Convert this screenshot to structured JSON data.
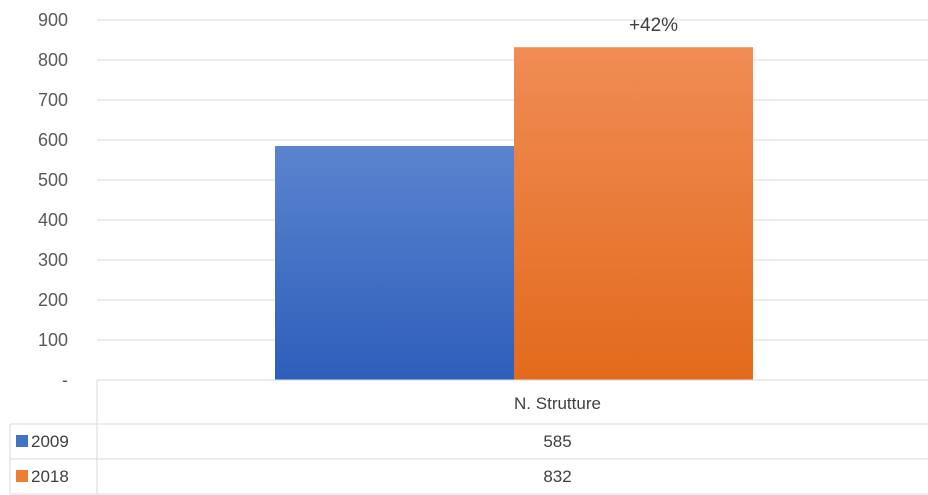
{
  "chart_data": {
    "type": "bar",
    "categories": [
      "N. Strutture"
    ],
    "series": [
      {
        "name": "2009",
        "values": [
          585
        ],
        "color": "#4472C4"
      },
      {
        "name": "2018",
        "values": [
          832
        ],
        "color": "#ED7D31"
      }
    ],
    "annotation": "+42%",
    "ylim": [
      0,
      900
    ],
    "yticks": [
      "-",
      "100",
      "200",
      "300",
      "400",
      "500",
      "600",
      "700",
      "800",
      "900"
    ],
    "grid": true,
    "legend": "data-table"
  }
}
